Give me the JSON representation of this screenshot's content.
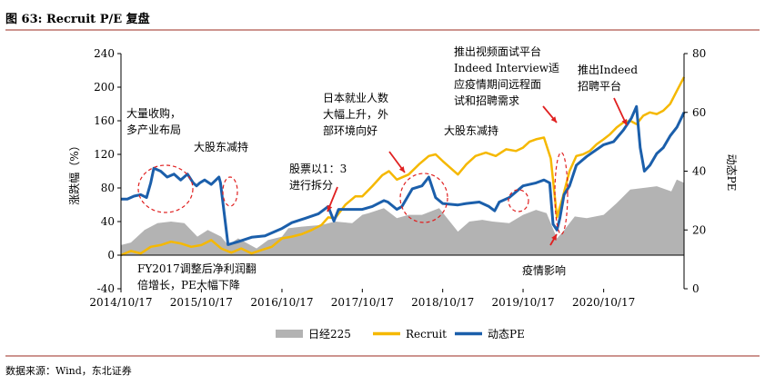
{
  "figure": {
    "title": "图 63: Recruit P/E 复盘",
    "source": "数据来源：Wind，东北证券"
  },
  "colors": {
    "nikkei": "#b3b3b3",
    "recruit": "#f5b800",
    "pe": "#1b5fab",
    "annotation": "#e02020",
    "rule": "#9b2b1f"
  },
  "chart_data": {
    "type": "line",
    "x_type": "date",
    "xlim": [
      "2014-10-17",
      "2021-10-17"
    ],
    "x_ticks": [
      "2014/10/17",
      "2015/10/17",
      "2016/10/17",
      "2017/10/17",
      "2018/10/17",
      "2019/10/17",
      "2020/10/17"
    ],
    "y_left": {
      "label": "涨跌幅（%）",
      "ylim": [
        -40,
        240
      ],
      "ticks": [
        "-40",
        "0",
        "40",
        "80",
        "120",
        "160",
        "200",
        "240"
      ]
    },
    "y_right": {
      "label": "动态PE",
      "ylim": [
        0,
        80
      ],
      "ticks": [
        "0",
        "20",
        "40",
        "60",
        "80"
      ]
    },
    "grid": false,
    "legend_position": "bottom",
    "series": [
      {
        "name": "日经225",
        "kind": "area",
        "axis": "left",
        "x": [
          "2014-10-17",
          "2014-12-01",
          "2015-02-01",
          "2015-04-01",
          "2015-06-01",
          "2015-08-01",
          "2015-09-29",
          "2015-11-15",
          "2016-01-15",
          "2016-02-15",
          "2016-04-01",
          "2016-06-24",
          "2016-08-15",
          "2016-10-17",
          "2016-11-15",
          "2017-01-15",
          "2017-04-15",
          "2017-06-15",
          "2017-09-01",
          "2017-10-17",
          "2017-11-15",
          "2018-01-23",
          "2018-03-23",
          "2018-05-15",
          "2018-07-15",
          "2018-10-01",
          "2018-12-25",
          "2019-02-15",
          "2019-04-15",
          "2019-06-01",
          "2019-08-15",
          "2019-10-17",
          "2019-12-15",
          "2020-02-01",
          "2020-03-19",
          "2020-04-15",
          "2020-06-08",
          "2020-08-01",
          "2020-10-17",
          "2020-12-15",
          "2021-02-15",
          "2021-04-15",
          "2021-06-15",
          "2021-08-20",
          "2021-09-14",
          "2021-10-17"
        ],
        "values": [
          12,
          15,
          30,
          38,
          40,
          38,
          22,
          30,
          22,
          12,
          20,
          8,
          18,
          22,
          32,
          34,
          36,
          40,
          38,
          48,
          50,
          56,
          44,
          48,
          48,
          56,
          28,
          40,
          42,
          40,
          38,
          48,
          54,
          50,
          20,
          28,
          46,
          44,
          48,
          62,
          78,
          80,
          82,
          76,
          90,
          86
        ]
      },
      {
        "name": "Recruit",
        "kind": "line",
        "axis": "left",
        "x": [
          "2014-10-17",
          "2014-12-01",
          "2015-01-15",
          "2015-03-01",
          "2015-04-15",
          "2015-06-01",
          "2015-07-15",
          "2015-09-01",
          "2015-10-17",
          "2015-12-01",
          "2016-01-15",
          "2016-03-01",
          "2016-04-15",
          "2016-06-01",
          "2016-07-15",
          "2016-09-01",
          "2016-10-17",
          "2016-12-01",
          "2017-01-15",
          "2017-03-01",
          "2017-04-15",
          "2017-05-15",
          "2017-06-15",
          "2017-08-01",
          "2017-09-15",
          "2017-10-17",
          "2017-12-01",
          "2018-01-15",
          "2018-02-15",
          "2018-03-23",
          "2018-05-15",
          "2018-07-01",
          "2018-08-15",
          "2018-09-15",
          "2018-10-17",
          "2018-12-25",
          "2019-02-01",
          "2019-03-15",
          "2019-05-01",
          "2019-06-15",
          "2019-08-01",
          "2019-09-15",
          "2019-10-17",
          "2019-11-15",
          "2019-12-15",
          "2020-01-20",
          "2020-02-20",
          "2020-03-19",
          "2020-04-15",
          "2020-05-15",
          "2020-06-15",
          "2020-07-15",
          "2020-08-15",
          "2020-09-15",
          "2020-10-17",
          "2020-11-15",
          "2020-12-15",
          "2021-01-15",
          "2021-02-15",
          "2021-03-15",
          "2021-04-15",
          "2021-05-15",
          "2021-06-15",
          "2021-07-15",
          "2021-08-15",
          "2021-09-15",
          "2021-10-17"
        ],
        "values": [
          0,
          5,
          2,
          10,
          12,
          16,
          14,
          10,
          12,
          18,
          8,
          3,
          8,
          2,
          6,
          10,
          20,
          22,
          25,
          30,
          36,
          45,
          44,
          60,
          70,
          70,
          82,
          95,
          100,
          90,
          96,
          108,
          118,
          120,
          112,
          96,
          108,
          118,
          122,
          118,
          126,
          124,
          128,
          135,
          138,
          140,
          115,
          45,
          70,
          100,
          118,
          120,
          124,
          132,
          138,
          144,
          152,
          158,
          160,
          156,
          166,
          170,
          168,
          172,
          180,
          196,
          212
        ]
      },
      {
        "name": "动态PE",
        "kind": "line",
        "axis": "right",
        "x": [
          "2014-10-17",
          "2014-11-15",
          "2014-12-15",
          "2015-01-15",
          "2015-02-10",
          "2015-03-01",
          "2015-03-15",
          "2015-04-15",
          "2015-05-15",
          "2015-06-15",
          "2015-07-15",
          "2015-08-15",
          "2015-09-10",
          "2015-09-25",
          "2015-10-10",
          "2015-11-01",
          "2015-12-01",
          "2016-01-05",
          "2016-01-12",
          "2016-02-15",
          "2016-04-01",
          "2016-06-01",
          "2016-08-01",
          "2016-10-17",
          "2016-12-01",
          "2017-02-01",
          "2017-04-01",
          "2017-05-15",
          "2017-06-10",
          "2017-07-01",
          "2017-08-15",
          "2017-10-17",
          "2017-12-01",
          "2018-01-23",
          "2018-02-10",
          "2018-03-23",
          "2018-04-15",
          "2018-06-01",
          "2018-07-15",
          "2018-08-15",
          "2018-09-15",
          "2018-10-17",
          "2018-12-25",
          "2019-02-01",
          "2019-04-01",
          "2019-05-15",
          "2019-06-10",
          "2019-07-01",
          "2019-08-15",
          "2019-10-17",
          "2019-12-15",
          "2020-01-20",
          "2020-02-15",
          "2020-03-01",
          "2020-03-19",
          "2020-04-01",
          "2020-04-20",
          "2020-05-15",
          "2020-06-15",
          "2020-08-01",
          "2020-10-17",
          "2020-12-01",
          "2021-01-15",
          "2021-02-20",
          "2021-03-15",
          "2021-04-01",
          "2021-04-20",
          "2021-05-15",
          "2021-06-15",
          "2021-07-15",
          "2021-08-15",
          "2021-09-15",
          "2021-10-17"
        ],
        "values": [
          30.5,
          30.5,
          31.5,
          32,
          31,
          36,
          41,
          40,
          38,
          39,
          37,
          39,
          36,
          35,
          36,
          37,
          35.5,
          38,
          36,
          15,
          16,
          17.5,
          18,
          20.5,
          22.5,
          24,
          25.5,
          28,
          23,
          27,
          27,
          27,
          28,
          30,
          29.5,
          27,
          28,
          34,
          35,
          38,
          31,
          29,
          28.5,
          29,
          29.5,
          28,
          26.5,
          29.5,
          31,
          35,
          36,
          37,
          36,
          22,
          20,
          24,
          32,
          35,
          42,
          45,
          49,
          50,
          54,
          58,
          62,
          48,
          40,
          42,
          46,
          48,
          52,
          55,
          60
        ]
      }
    ],
    "annotations": [
      {
        "lines": [
          "大量收购，",
          "多产业布局"
        ]
      },
      {
        "lines": [
          "大股东减持"
        ]
      },
      {
        "lines": [
          "FY2017调整后净利润翻",
          "倍增长，PE大幅下降"
        ]
      },
      {
        "lines": [
          "股票以1：3",
          "进行拆分"
        ]
      },
      {
        "lines": [
          "日本就业人数",
          "大幅上升，外",
          "部环境向好"
        ]
      },
      {
        "lines": [
          "推出视频面试平台",
          "Indeed Interview适",
          "应疫情期间远程面",
          "试和招聘需求"
        ]
      },
      {
        "lines": [
          "大股东减持"
        ]
      },
      {
        "lines": [
          "推出Indeed",
          "招聘平台"
        ]
      },
      {
        "lines": [
          "疫情影响"
        ]
      }
    ]
  }
}
